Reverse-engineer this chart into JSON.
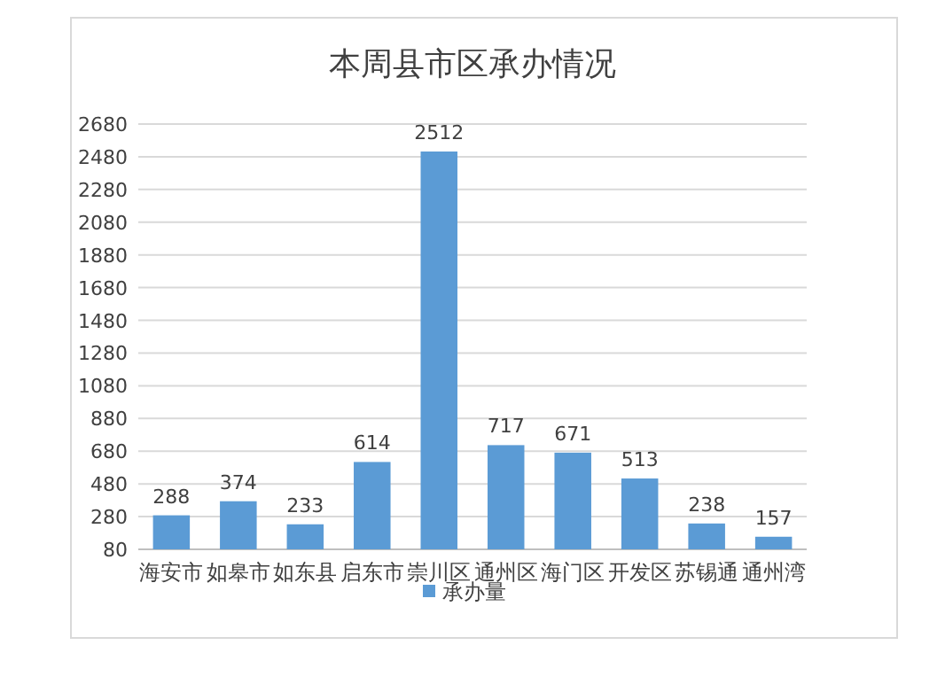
{
  "chart_data": {
    "type": "bar",
    "title": "本周县市区承办情况",
    "categories": [
      "海安市",
      "如皋市",
      "如东县",
      "启东市",
      "崇川区",
      "通州区",
      "海门区",
      "开发区",
      "苏锡通",
      "通州湾"
    ],
    "series": [
      {
        "name": "承办量",
        "color": "#5b9bd5",
        "values": [
          288,
          374,
          233,
          614,
          2512,
          717,
          671,
          513,
          238,
          157
        ]
      }
    ],
    "ylim": [
      80,
      2680
    ],
    "yticks": [
      80,
      280,
      480,
      680,
      880,
      1080,
      1280,
      1480,
      1680,
      1880,
      2080,
      2280,
      2480,
      2680
    ],
    "grid": "y",
    "legend": "bottom",
    "data_labels": true
  }
}
